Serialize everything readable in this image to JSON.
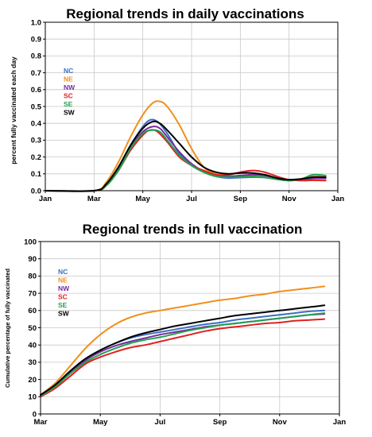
{
  "chart_data": [
    {
      "type": "line",
      "title": "Regional trends in daily vaccinations",
      "ylabel": "percent fully vaccinated each day",
      "xlabel": "",
      "ylim": [
        0,
        1.0
      ],
      "yticks": [
        "0.0",
        "0.1",
        "0.2",
        "0.3",
        "0.4",
        "0.5",
        "0.6",
        "0.7",
        "0.8",
        "0.9",
        "1.0"
      ],
      "xticks": [
        "Jan",
        "Mar",
        "May",
        "Jul",
        "Sep",
        "Nov",
        "Jan"
      ],
      "grid": true,
      "legend": "top-left",
      "series": [
        {
          "name": "NC",
          "color": "#3a6fc4",
          "points": [
            [
              0,
              0
            ],
            [
              2.0,
              0
            ],
            [
              2.5,
              0.04
            ],
            [
              3.0,
              0.14
            ],
            [
              3.5,
              0.27
            ],
            [
              4.0,
              0.38
            ],
            [
              4.3,
              0.42
            ],
            [
              4.6,
              0.41
            ],
            [
              5.0,
              0.34
            ],
            [
              5.5,
              0.22
            ],
            [
              6.0,
              0.15
            ],
            [
              6.5,
              0.11
            ],
            [
              7.0,
              0.085
            ],
            [
              7.5,
              0.075
            ],
            [
              8.0,
              0.078
            ],
            [
              8.5,
              0.08
            ],
            [
              9.0,
              0.078
            ],
            [
              9.5,
              0.068
            ],
            [
              10.0,
              0.06
            ],
            [
              10.5,
              0.065
            ],
            [
              11.0,
              0.072
            ],
            [
              11.5,
              0.072
            ]
          ]
        },
        {
          "name": "NE",
          "color": "#f0901e",
          "points": [
            [
              0,
              0
            ],
            [
              2.0,
              0
            ],
            [
              2.5,
              0.05
            ],
            [
              3.0,
              0.17
            ],
            [
              3.5,
              0.32
            ],
            [
              4.0,
              0.45
            ],
            [
              4.4,
              0.52
            ],
            [
              4.7,
              0.53
            ],
            [
              5.0,
              0.5
            ],
            [
              5.5,
              0.39
            ],
            [
              6.0,
              0.25
            ],
            [
              6.5,
              0.14
            ],
            [
              7.0,
              0.1
            ],
            [
              7.5,
              0.09
            ],
            [
              8.0,
              0.085
            ],
            [
              8.5,
              0.085
            ],
            [
              9.0,
              0.08
            ],
            [
              9.5,
              0.07
            ],
            [
              10.0,
              0.065
            ],
            [
              10.5,
              0.07
            ],
            [
              11.0,
              0.085
            ],
            [
              11.5,
              0.082
            ]
          ]
        },
        {
          "name": "NW",
          "color": "#7a2b9c",
          "points": [
            [
              0,
              0
            ],
            [
              2.0,
              0
            ],
            [
              2.5,
              0.035
            ],
            [
              3.0,
              0.13
            ],
            [
              3.5,
              0.26
            ],
            [
              4.0,
              0.35
            ],
            [
              4.4,
              0.38
            ],
            [
              4.7,
              0.37
            ],
            [
              5.0,
              0.32
            ],
            [
              5.5,
              0.23
            ],
            [
              6.0,
              0.16
            ],
            [
              6.5,
              0.115
            ],
            [
              7.0,
              0.09
            ],
            [
              7.5,
              0.085
            ],
            [
              8.0,
              0.09
            ],
            [
              8.5,
              0.095
            ],
            [
              9.0,
              0.09
            ],
            [
              9.5,
              0.075
            ],
            [
              10.0,
              0.065
            ],
            [
              10.5,
              0.07
            ],
            [
              11.0,
              0.075
            ],
            [
              11.5,
              0.075
            ]
          ]
        },
        {
          "name": "SC",
          "color": "#e02020",
          "points": [
            [
              0,
              0
            ],
            [
              2.0,
              0
            ],
            [
              2.5,
              0.03
            ],
            [
              3.0,
              0.12
            ],
            [
              3.5,
              0.24
            ],
            [
              4.0,
              0.33
            ],
            [
              4.3,
              0.36
            ],
            [
              4.6,
              0.35
            ],
            [
              5.0,
              0.29
            ],
            [
              5.5,
              0.2
            ],
            [
              6.0,
              0.15
            ],
            [
              6.5,
              0.12
            ],
            [
              7.0,
              0.095
            ],
            [
              7.5,
              0.095
            ],
            [
              8.0,
              0.11
            ],
            [
              8.5,
              0.12
            ],
            [
              9.0,
              0.11
            ],
            [
              9.5,
              0.085
            ],
            [
              10.0,
              0.065
            ],
            [
              10.5,
              0.06
            ],
            [
              11.0,
              0.062
            ],
            [
              11.5,
              0.06
            ]
          ]
        },
        {
          "name": "SE",
          "color": "#22a050",
          "points": [
            [
              0,
              0
            ],
            [
              2.0,
              0
            ],
            [
              2.5,
              0.03
            ],
            [
              3.0,
              0.12
            ],
            [
              3.5,
              0.25
            ],
            [
              4.0,
              0.34
            ],
            [
              4.4,
              0.36
            ],
            [
              4.7,
              0.35
            ],
            [
              5.0,
              0.3
            ],
            [
              5.5,
              0.21
            ],
            [
              6.0,
              0.15
            ],
            [
              6.5,
              0.11
            ],
            [
              7.0,
              0.085
            ],
            [
              7.5,
              0.08
            ],
            [
              8.0,
              0.082
            ],
            [
              8.5,
              0.085
            ],
            [
              9.0,
              0.08
            ],
            [
              9.5,
              0.068
            ],
            [
              10.0,
              0.06
            ],
            [
              10.5,
              0.07
            ],
            [
              11.0,
              0.095
            ],
            [
              11.5,
              0.09
            ]
          ]
        },
        {
          "name": "SW",
          "color": "#000000",
          "points": [
            [
              0,
              0
            ],
            [
              2.0,
              0
            ],
            [
              2.5,
              0.04
            ],
            [
              3.0,
              0.14
            ],
            [
              3.5,
              0.27
            ],
            [
              4.0,
              0.37
            ],
            [
              4.4,
              0.41
            ],
            [
              4.7,
              0.4
            ],
            [
              5.0,
              0.36
            ],
            [
              5.5,
              0.28
            ],
            [
              6.0,
              0.2
            ],
            [
              6.5,
              0.14
            ],
            [
              7.0,
              0.11
            ],
            [
              7.5,
              0.1
            ],
            [
              8.0,
              0.105
            ],
            [
              8.5,
              0.105
            ],
            [
              9.0,
              0.095
            ],
            [
              9.5,
              0.075
            ],
            [
              10.0,
              0.065
            ],
            [
              10.5,
              0.07
            ],
            [
              11.0,
              0.08
            ],
            [
              11.5,
              0.08
            ]
          ]
        }
      ]
    },
    {
      "type": "line",
      "title": "Regional trends in full vaccination",
      "ylabel": "Cumulative percentage of fully vaccinated",
      "xlabel": "",
      "ylim": [
        0,
        100
      ],
      "yticks": [
        "0",
        "10",
        "20",
        "30",
        "40",
        "50",
        "60",
        "70",
        "80",
        "90",
        "100"
      ],
      "xticks": [
        "Mar",
        "May",
        "Jul",
        "Sep",
        "Nov",
        "Jan"
      ],
      "grid": true,
      "legend": "top-left",
      "series": [
        {
          "name": "NC",
          "color": "#3a6fc4",
          "points": [
            [
              0,
              11
            ],
            [
              0.5,
              17
            ],
            [
              1.0,
              25
            ],
            [
              1.5,
              32
            ],
            [
              2.0,
              37
            ],
            [
              2.5,
              41
            ],
            [
              3.0,
              44
            ],
            [
              3.5,
              46
            ],
            [
              4.0,
              47.5
            ],
            [
              4.5,
              49
            ],
            [
              5.0,
              50.5
            ],
            [
              5.5,
              52
            ],
            [
              6.0,
              53
            ],
            [
              6.5,
              54.5
            ],
            [
              7.0,
              55.5
            ],
            [
              7.5,
              56.5
            ],
            [
              8.0,
              57.5
            ],
            [
              8.5,
              58.5
            ],
            [
              9.0,
              59.5
            ],
            [
              9.5,
              60
            ]
          ]
        },
        {
          "name": "NE",
          "color": "#f0901e",
          "points": [
            [
              0,
              11
            ],
            [
              0.5,
              18
            ],
            [
              1.0,
              28
            ],
            [
              1.5,
              38
            ],
            [
              2.0,
              46
            ],
            [
              2.5,
              52
            ],
            [
              3.0,
              56
            ],
            [
              3.5,
              58.5
            ],
            [
              4.0,
              60
            ],
            [
              4.5,
              61.5
            ],
            [
              5.0,
              63
            ],
            [
              5.5,
              64.5
            ],
            [
              6.0,
              66
            ],
            [
              6.5,
              67
            ],
            [
              7.0,
              68.5
            ],
            [
              7.5,
              69.5
            ],
            [
              8.0,
              71
            ],
            [
              8.5,
              72
            ],
            [
              9.0,
              73
            ],
            [
              9.5,
              74
            ]
          ]
        },
        {
          "name": "NW",
          "color": "#7a2b9c",
          "points": [
            [
              0,
              11
            ],
            [
              0.5,
              16.5
            ],
            [
              1.0,
              24
            ],
            [
              1.5,
              31
            ],
            [
              2.0,
              36
            ],
            [
              2.5,
              39.5
            ],
            [
              3.0,
              42
            ],
            [
              3.5,
              44
            ],
            [
              4.0,
              46
            ],
            [
              4.5,
              47.5
            ],
            [
              5.0,
              49
            ],
            [
              5.5,
              50.5
            ],
            [
              6.0,
              51.5
            ],
            [
              6.5,
              52.5
            ],
            [
              7.0,
              53.5
            ],
            [
              7.5,
              54.5
            ],
            [
              8.0,
              55.5
            ],
            [
              8.5,
              56.5
            ],
            [
              9.0,
              57.5
            ],
            [
              9.5,
              58
            ]
          ]
        },
        {
          "name": "SC",
          "color": "#e02020",
          "points": [
            [
              0,
              10
            ],
            [
              0.5,
              15
            ],
            [
              1.0,
              22
            ],
            [
              1.5,
              29
            ],
            [
              2.0,
              33
            ],
            [
              2.5,
              36
            ],
            [
              3.0,
              38.5
            ],
            [
              3.5,
              40
            ],
            [
              4.0,
              42
            ],
            [
              4.5,
              44
            ],
            [
              5.0,
              46
            ],
            [
              5.5,
              48
            ],
            [
              6.0,
              49.5
            ],
            [
              6.5,
              50.5
            ],
            [
              7.0,
              51.5
            ],
            [
              7.5,
              52.5
            ],
            [
              8.0,
              53
            ],
            [
              8.5,
              54
            ],
            [
              9.0,
              54.5
            ],
            [
              9.5,
              55
            ]
          ]
        },
        {
          "name": "SE",
          "color": "#22a050",
          "points": [
            [
              0,
              10.5
            ],
            [
              0.5,
              16
            ],
            [
              1.0,
              23.5
            ],
            [
              1.5,
              30
            ],
            [
              2.0,
              34.5
            ],
            [
              2.5,
              38
            ],
            [
              3.0,
              41
            ],
            [
              3.5,
              43
            ],
            [
              4.0,
              44.5
            ],
            [
              4.5,
              46.5
            ],
            [
              5.0,
              48.5
            ],
            [
              5.5,
              50
            ],
            [
              6.0,
              51.5
            ],
            [
              6.5,
              52.5
            ],
            [
              7.0,
              53.5
            ],
            [
              7.5,
              54.5
            ],
            [
              8.0,
              55.5
            ],
            [
              8.5,
              56.5
            ],
            [
              9.0,
              57.5
            ],
            [
              9.5,
              58.5
            ]
          ]
        },
        {
          "name": "SW",
          "color": "#000000",
          "points": [
            [
              0,
              11
            ],
            [
              0.5,
              17
            ],
            [
              1.0,
              25
            ],
            [
              1.5,
              32
            ],
            [
              2.0,
              37
            ],
            [
              2.5,
              41
            ],
            [
              3.0,
              44.5
            ],
            [
              3.5,
              47
            ],
            [
              4.0,
              49
            ],
            [
              4.5,
              51
            ],
            [
              5.0,
              52.5
            ],
            [
              5.5,
              54
            ],
            [
              6.0,
              55.5
            ],
            [
              6.5,
              57
            ],
            [
              7.0,
              58
            ],
            [
              7.5,
              59
            ],
            [
              8.0,
              60
            ],
            [
              8.5,
              61
            ],
            [
              9.0,
              62
            ],
            [
              9.5,
              63
            ]
          ]
        }
      ]
    }
  ]
}
